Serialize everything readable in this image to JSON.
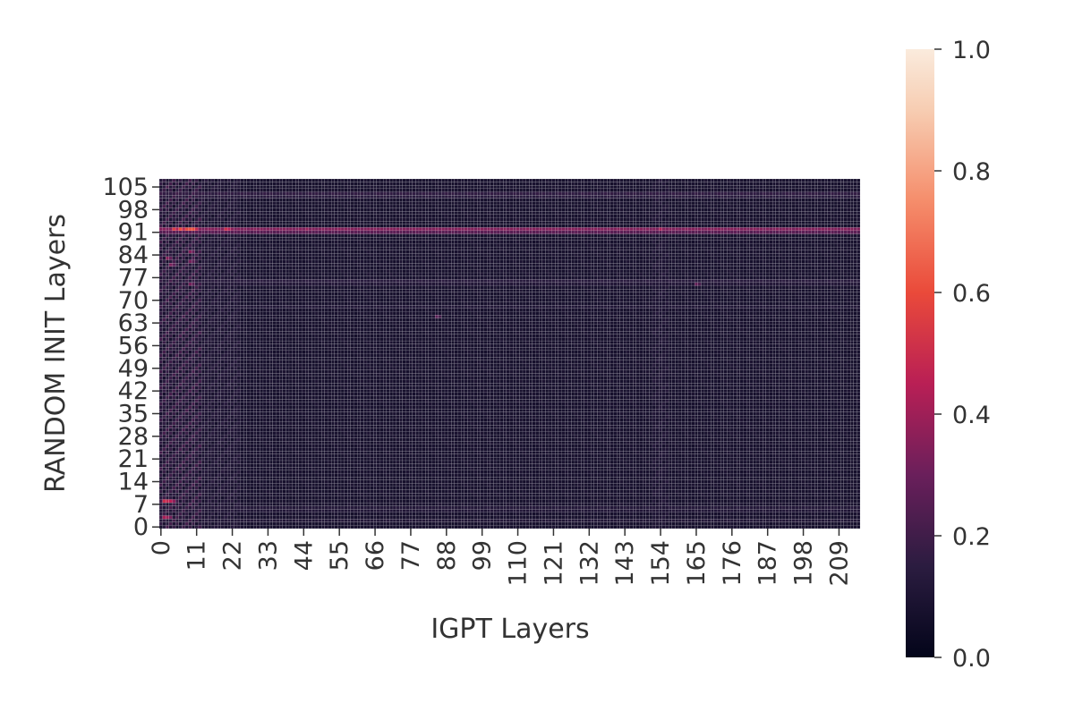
{
  "chart_data": {
    "type": "heatmap",
    "title": "",
    "xlabel": "IGPT Layers",
    "ylabel": "RANDOM INIT Layers",
    "x_count": 216,
    "y_count": 108,
    "x_tick_labels": [
      "0",
      "11",
      "22",
      "33",
      "44",
      "55",
      "66",
      "77",
      "88",
      "99",
      "110",
      "121",
      "132",
      "143",
      "154",
      "165",
      "176",
      "187",
      "198",
      "209"
    ],
    "y_tick_labels": [
      "0",
      "7",
      "14",
      "21",
      "28",
      "35",
      "42",
      "49",
      "56",
      "63",
      "70",
      "77",
      "84",
      "91",
      "98",
      "105"
    ],
    "x_tick_step": 11,
    "y_tick_step": 7,
    "value_range": [
      0.0,
      1.0
    ],
    "colormap": "rocket",
    "colorbar_ticks": [
      "0.0",
      "0.2",
      "0.4",
      "0.6",
      "0.8",
      "1.0"
    ],
    "baseline_value": 0.08,
    "row_intensity": [
      {
        "row": 92,
        "value": 0.34
      },
      {
        "row": 91,
        "value": 0.26
      },
      {
        "row": 103,
        "value": 0.16
      },
      {
        "row": 102,
        "value": 0.14
      },
      {
        "row": 76,
        "value": 0.14
      },
      {
        "row": 75,
        "value": 0.12
      },
      {
        "row": 6,
        "value": 0.12
      },
      {
        "row": 5,
        "value": 0.11
      },
      {
        "row": 2,
        "value": 0.12
      },
      {
        "row": 68,
        "value": 0.11
      }
    ],
    "column_intensity": [
      {
        "cols": [
          0,
          12
        ],
        "value": 0.2
      },
      {
        "cols": [
          13,
          24
        ],
        "value": 0.13
      },
      {
        "cols": [
          152,
          156
        ],
        "value": 0.12
      }
    ],
    "hot_cells": [
      {
        "x": 4,
        "y": 92,
        "value": 0.55
      },
      {
        "x": 6,
        "y": 92,
        "value": 0.6
      },
      {
        "x": 8,
        "y": 92,
        "value": 0.58
      },
      {
        "x": 9,
        "y": 92,
        "value": 0.62
      },
      {
        "x": 10,
        "y": 92,
        "value": 0.6
      },
      {
        "x": 20,
        "y": 92,
        "value": 0.5
      },
      {
        "x": 21,
        "y": 92,
        "value": 0.45
      },
      {
        "x": 45,
        "y": 92,
        "value": 0.38
      },
      {
        "x": 55,
        "y": 92,
        "value": 0.36
      },
      {
        "x": 61,
        "y": 92,
        "value": 0.35
      },
      {
        "x": 154,
        "y": 92,
        "value": 0.42
      },
      {
        "x": 172,
        "y": 92,
        "value": 0.35
      },
      {
        "x": 1,
        "y": 8,
        "value": 0.5
      },
      {
        "x": 2,
        "y": 8,
        "value": 0.48
      },
      {
        "x": 3,
        "y": 8,
        "value": 0.45
      },
      {
        "x": 1,
        "y": 3,
        "value": 0.42
      },
      {
        "x": 2,
        "y": 3,
        "value": 0.4
      },
      {
        "x": 9,
        "y": 85,
        "value": 0.35
      },
      {
        "x": 9,
        "y": 82,
        "value": 0.32
      },
      {
        "x": 2,
        "y": 83,
        "value": 0.35
      },
      {
        "x": 3,
        "y": 81,
        "value": 0.33
      },
      {
        "x": 9,
        "y": 75,
        "value": 0.32
      },
      {
        "x": 165,
        "y": 75,
        "value": 0.28
      },
      {
        "x": 85,
        "y": 65,
        "value": 0.26
      }
    ]
  }
}
